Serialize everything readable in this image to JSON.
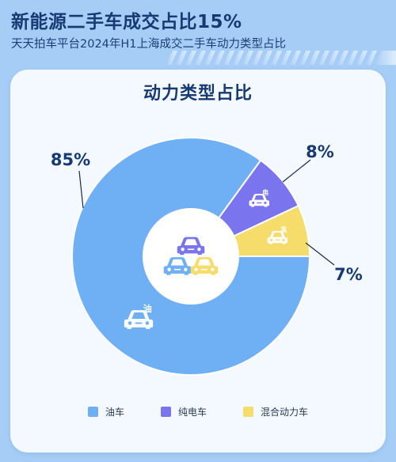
{
  "header": {
    "title": "新能源二手车成交占比15%",
    "subtitle": "天天拍车平台2024年H1上海成交二手车动力类型占比"
  },
  "colors": {
    "background": "#a6cdf6",
    "card": "#f3f9ff",
    "title": "#173a73",
    "fuel": "#6fb0f5",
    "ev": "#7a74ee",
    "hybrid": "#f6dc6a"
  },
  "chart_data": {
    "type": "pie",
    "style": "donut",
    "title": "动力类型占比",
    "series": [
      {
        "name": "油车",
        "value": 85,
        "label": "85%",
        "color": "#6fb0f5",
        "icon_text": "油",
        "icon": "car-fuel-icon"
      },
      {
        "name": "纯电车",
        "value": 8,
        "label": "8%",
        "color": "#7a74ee",
        "icon_text": "电",
        "icon": "car-electric-icon"
      },
      {
        "name": "混合动力车",
        "value": 7,
        "label": "7%",
        "color": "#f6dc6a",
        "icon_text": "混",
        "icon": "car-hybrid-icon"
      }
    ],
    "legend_position": "bottom",
    "center_icon": "three-cars-icon"
  }
}
